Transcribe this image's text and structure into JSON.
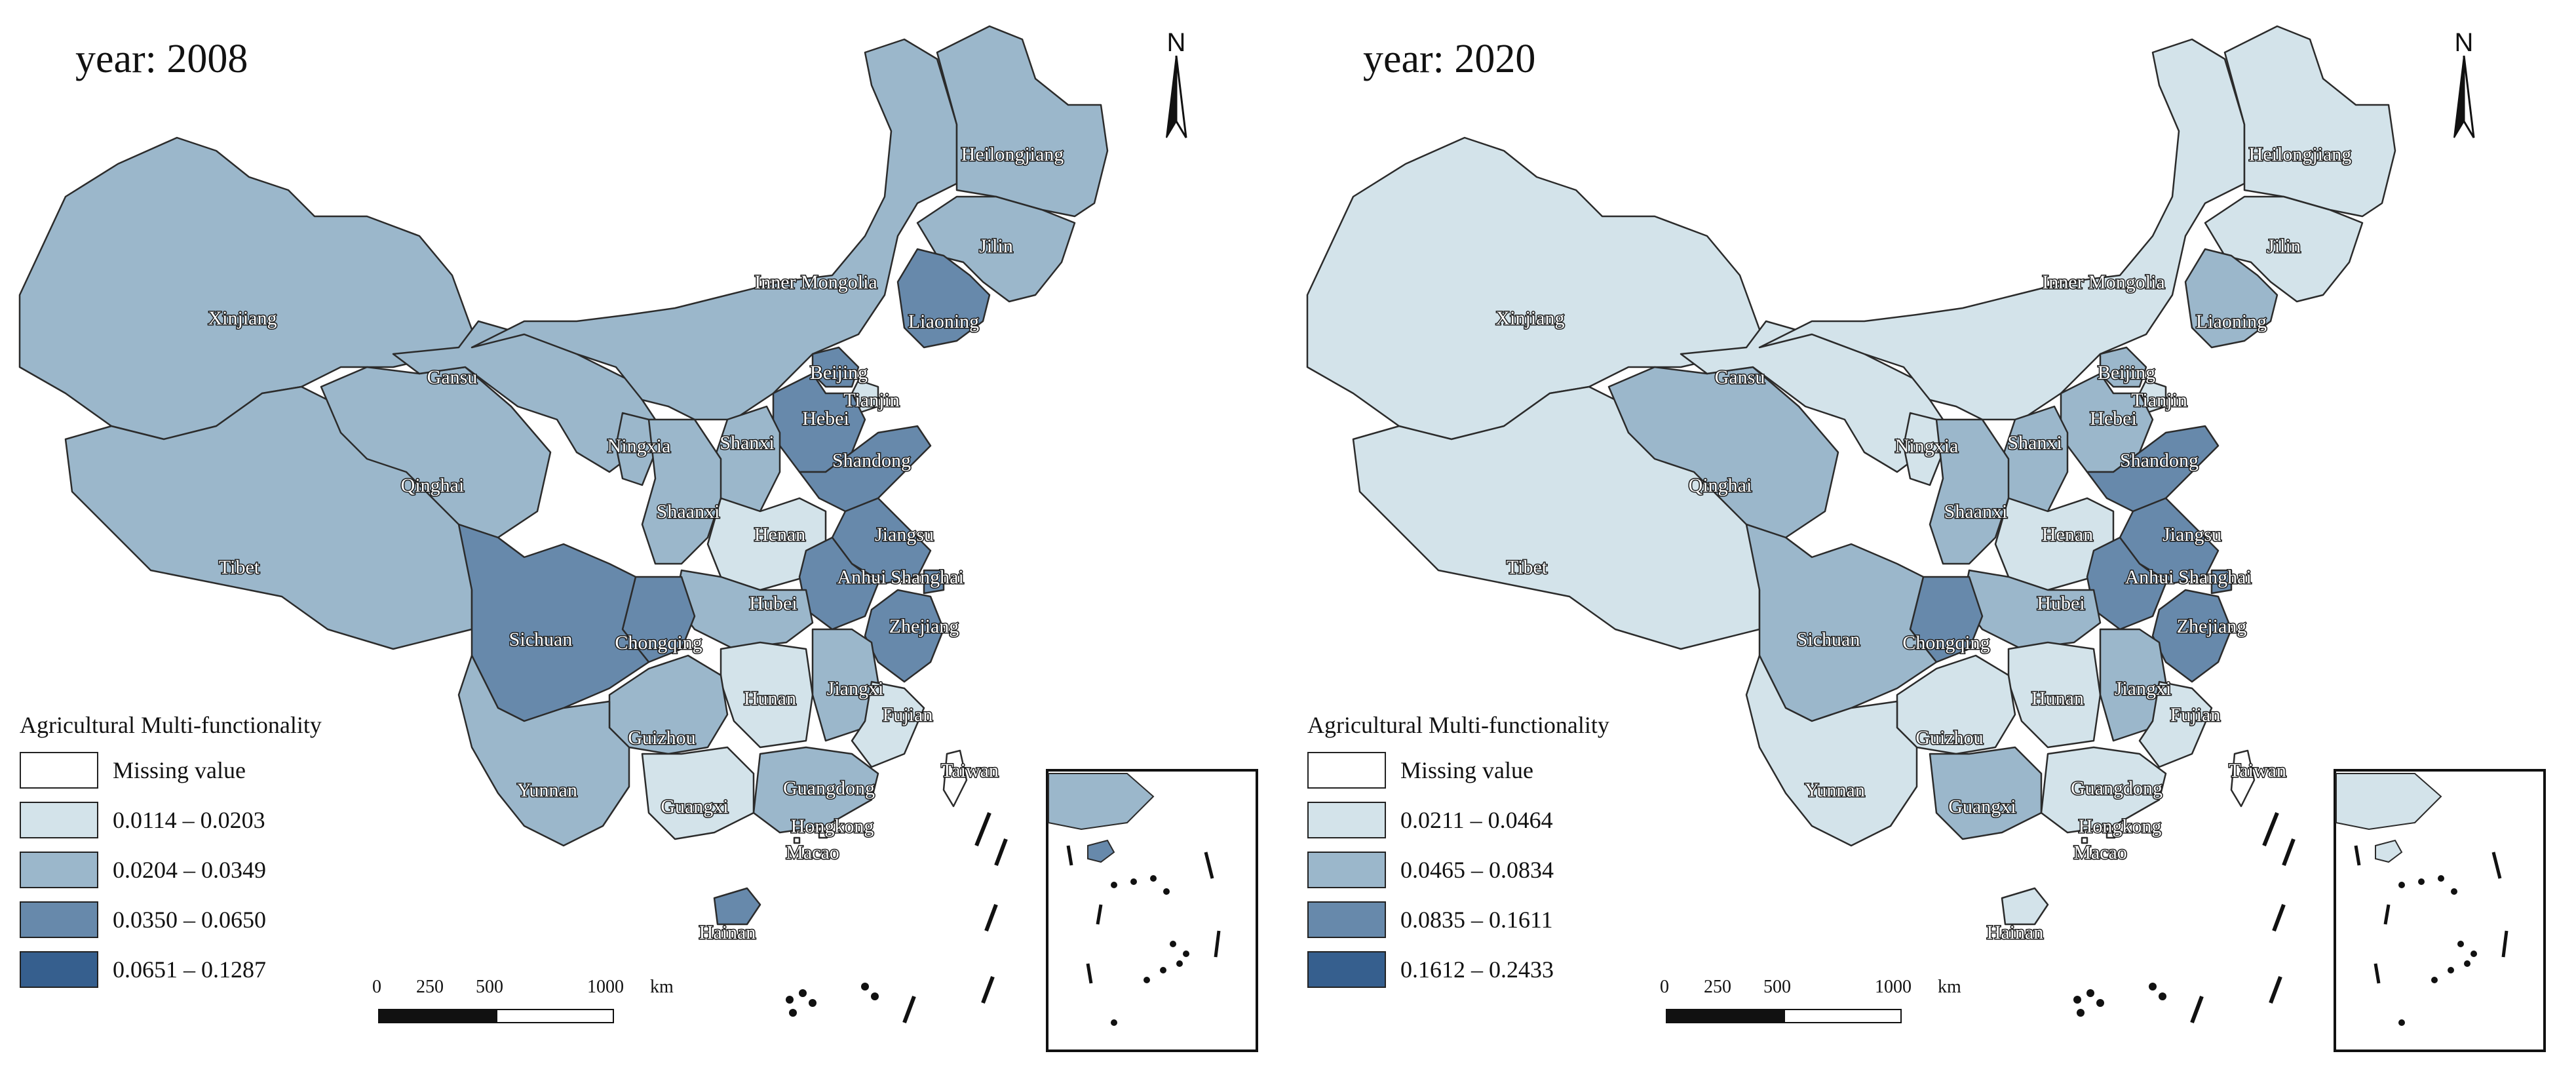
{
  "legend_title": "Agricultural Multi-functionality",
  "missing_label": "Missing value",
  "scale_labels": {
    "l0": "0",
    "l250": "250",
    "l500": "500",
    "l1000": "1000",
    "unit": "km"
  },
  "north_label": "N",
  "province_names": {
    "heilongjiang": "Heilongjiang",
    "jilin": "Jilin",
    "liaoning": "Liaoning",
    "inner_mongolia": "Inner Mongolia",
    "xinjiang": "Xinjiang",
    "gansu": "Gansu",
    "beijing": "Beijing",
    "tianjin": "Tianjin",
    "hebei": "Hebei",
    "shanxi": "Shanxi",
    "shandong": "Shandong",
    "ningxia": "Ningxia",
    "qinghai": "Qinghai",
    "shaanxi": "Shaanxi",
    "henan": "Henan",
    "jiangsu": "Jiangsu",
    "anhui": "Anhui",
    "shanghai": "Shanghai",
    "tibet": "Tibet",
    "sichuan": "Sichuan",
    "chongqing": "Chongqing",
    "hubei": "Hubei",
    "zhejiang": "Zhejiang",
    "hunan": "Hunan",
    "jiangxi": "Jiangxi",
    "fujian": "Fujian",
    "guizhou": "Guizhou",
    "taiwan": "Taiwan",
    "yunnan": "Yunnan",
    "guangxi": "Guangxi",
    "guangdong": "Guangdong",
    "hongkong": "Hongkong",
    "macao": "Macao",
    "hainan": "Hainan"
  },
  "class_colors": [
    "#d3e3ea",
    "#9bb7cb",
    "#6789ab",
    "#365f8e"
  ],
  "maps": [
    {
      "title": "year: 2008",
      "classes": [
        "0.0114 – 0.0203",
        "0.0204 – 0.0349",
        "0.0350 – 0.0650",
        "0.0651 – 0.1287"
      ],
      "province_class": {
        "heilongjiang": 1,
        "jilin": 1,
        "liaoning": 2,
        "inner_mongolia": 1,
        "xinjiang": 1,
        "gansu": 1,
        "beijing": 2,
        "tianjin": 0,
        "hebei": 2,
        "shanxi": 1,
        "shandong": 2,
        "ningxia": 1,
        "qinghai": 1,
        "shaanxi": 1,
        "henan": 0,
        "jiangsu": 2,
        "anhui": 2,
        "shanghai": 2,
        "tibet": 1,
        "sichuan": 2,
        "chongqing": 2,
        "hubei": 1,
        "zhejiang": 2,
        "hunan": 0,
        "jiangxi": 1,
        "fujian": 0,
        "guizhou": 1,
        "taiwan": null,
        "yunnan": 1,
        "guangxi": 0,
        "guangdong": 1,
        "hongkong": null,
        "macao": null,
        "hainan": 2
      }
    },
    {
      "title": "year: 2020",
      "classes": [
        "0.0211 – 0.0464",
        "0.0465 – 0.0834",
        "0.0835 – 0.1611",
        "0.1612 – 0.2433"
      ],
      "province_class": {
        "heilongjiang": 0,
        "jilin": 0,
        "liaoning": 1,
        "inner_mongolia": 0,
        "xinjiang": 0,
        "gansu": 0,
        "beijing": 1,
        "tianjin": 0,
        "hebei": 1,
        "shanxi": 1,
        "shandong": 2,
        "ningxia": 0,
        "qinghai": 1,
        "shaanxi": 1,
        "henan": 0,
        "jiangsu": 2,
        "anhui": 2,
        "shanghai": 2,
        "tibet": 0,
        "sichuan": 1,
        "chongqing": 2,
        "hubei": 1,
        "zhejiang": 2,
        "hunan": 0,
        "jiangxi": 1,
        "fujian": 0,
        "guizhou": 0,
        "taiwan": null,
        "yunnan": 0,
        "guangxi": 1,
        "guangdong": 0,
        "hongkong": null,
        "macao": null,
        "hainan": 0
      }
    }
  ]
}
